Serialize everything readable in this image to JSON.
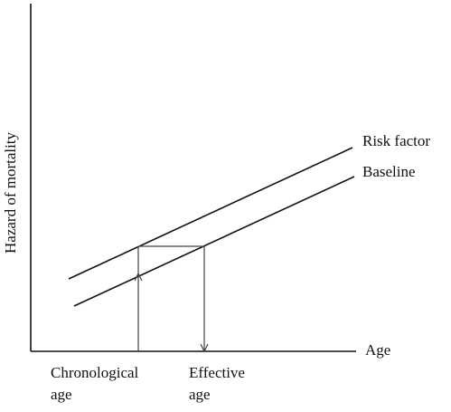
{
  "diagram": {
    "y_axis_label": "Hazard of mortality",
    "x_axis_label": "Age",
    "lines": [
      {
        "name": "Risk factor"
      },
      {
        "name": "Baseline"
      }
    ],
    "x_markers": [
      {
        "line1": "Chronological",
        "line2": "age"
      },
      {
        "line1": "Effective",
        "line2": "age"
      }
    ]
  }
}
